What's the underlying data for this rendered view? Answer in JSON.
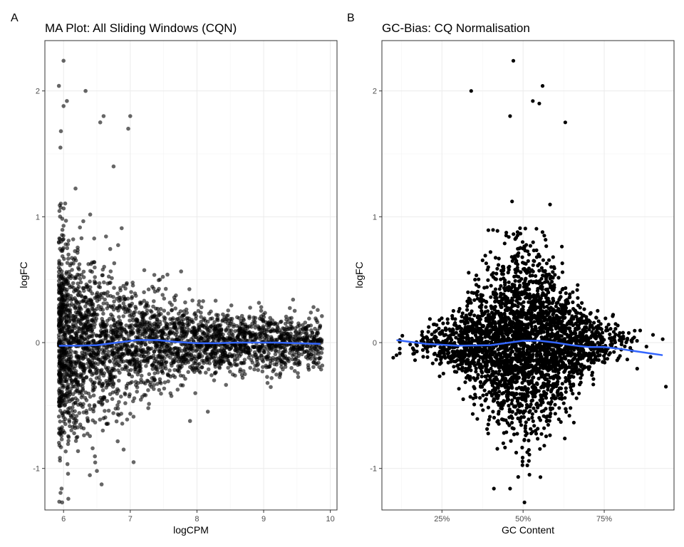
{
  "chart_data": [
    {
      "tag": "A",
      "type": "scatter",
      "title": "MA Plot: All Sliding Windows (CQN)",
      "xlabel": "logCPM",
      "ylabel": "logFC",
      "xlim": [
        5.72,
        10.1
      ],
      "ylim": [
        -1.33,
        2.4
      ],
      "x_ticks": [
        6,
        7,
        8,
        9,
        10
      ],
      "x_tick_labels": [
        "6",
        "7",
        "8",
        "9",
        "10"
      ],
      "y_ticks": [
        -1,
        0,
        1,
        2
      ],
      "y_tick_labels": [
        "-1",
        "0",
        "1",
        "2"
      ],
      "grid": true,
      "point_color": "#000000",
      "point_alpha": 0.6,
      "smooth_color": "#3366ff",
      "smooth_line": {
        "x": [
          5.93,
          6.2,
          6.5,
          6.8,
          7.1,
          7.4,
          7.7,
          8.0,
          8.3,
          8.6,
          8.9,
          9.2,
          9.5,
          9.85
        ],
        "y": [
          -0.025,
          -0.025,
          -0.02,
          0.0,
          0.02,
          0.02,
          0.005,
          -0.005,
          -0.005,
          0.0,
          0.0,
          0.0,
          -0.005,
          -0.01
        ]
      },
      "outliers": {
        "x": [
          5.93,
          6.0,
          5.97,
          6.33,
          6.05,
          6.6,
          6.55,
          7.0,
          6.97,
          5.96,
          6.0,
          6.5,
          6.75,
          6.9,
          7.05
        ],
        "y": [
          2.04,
          2.24,
          -1.16,
          2.0,
          1.92,
          1.8,
          1.75,
          1.8,
          1.7,
          1.68,
          1.88,
          -1.02,
          1.4,
          -0.85,
          -0.95
        ]
      }
    },
    {
      "tag": "B",
      "type": "scatter",
      "title": "GC-Bias: CQ Normalisation",
      "xlabel": "GC Content",
      "ylabel": "logFC",
      "xlim": [
        0.065,
        0.965
      ],
      "ylim": [
        -1.33,
        2.4
      ],
      "x_ticks": [
        0.25,
        0.5,
        0.75
      ],
      "x_tick_labels": [
        "25%",
        "50%",
        "75%"
      ],
      "y_ticks": [
        -1,
        0,
        1,
        2
      ],
      "y_tick_labels": [
        "-1",
        "0",
        "1",
        "2"
      ],
      "grid": true,
      "point_color": "#000000",
      "point_alpha": 1.0,
      "smooth_color": "#3366ff",
      "smooth_line": {
        "x": [
          0.11,
          0.2,
          0.3,
          0.4,
          0.5,
          0.55,
          0.6,
          0.65,
          0.7,
          0.75,
          0.8,
          0.85,
          0.93
        ],
        "y": [
          0.02,
          -0.01,
          -0.025,
          -0.02,
          0.015,
          0.015,
          0.0,
          -0.02,
          -0.035,
          -0.035,
          -0.05,
          -0.07,
          -0.1
        ]
      },
      "outliers": {
        "x": [
          0.47,
          0.46,
          0.34,
          0.41,
          0.46,
          0.56,
          0.55,
          0.63,
          0.11,
          0.94,
          0.1,
          0.53
        ],
        "y": [
          2.24,
          -1.16,
          2.0,
          -1.16,
          1.8,
          2.04,
          1.9,
          1.75,
          -0.1,
          -0.35,
          -0.12,
          1.92
        ]
      }
    }
  ]
}
